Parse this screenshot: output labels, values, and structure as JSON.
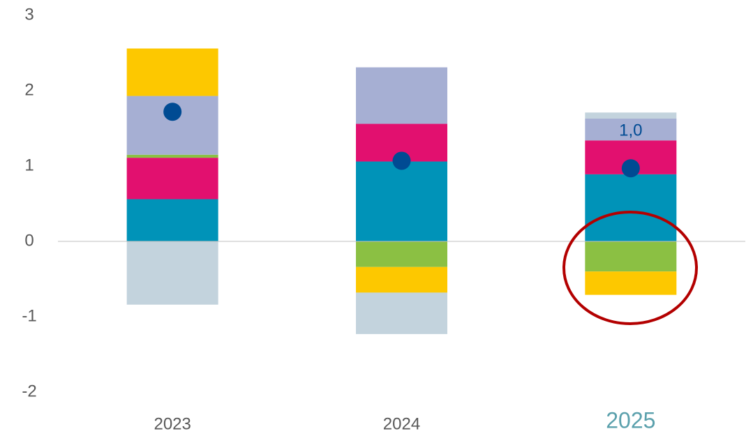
{
  "chart_data": {
    "type": "bar",
    "stacked": true,
    "categories": [
      "2023",
      "2024",
      "2025"
    ],
    "category_colors": [
      "#595959",
      "#595959",
      "#5aa0ac"
    ],
    "series": [
      {
        "color": "#0093b8",
        "values": [
          0.56,
          1.06,
          0.89
        ]
      },
      {
        "color": "#e2106f",
        "values": [
          0.55,
          0.5,
          0.45
        ]
      },
      {
        "color": "#8bc043",
        "values": [
          0.04,
          -0.34,
          -0.4
        ]
      },
      {
        "color": "#a6afd3",
        "values": [
          0.78,
          0.75,
          0.29
        ]
      },
      {
        "color": "#fdc800",
        "values": [
          0.63,
          -0.34,
          -0.31
        ]
      },
      {
        "color": "#c3d3dd",
        "values": [
          -0.84,
          -0.55,
          0.08
        ]
      }
    ],
    "dots": {
      "color": "#004b93",
      "values": [
        1.72,
        1.07,
        0.97
      ],
      "value_labels": [
        null,
        null,
        "1,0"
      ]
    },
    "ylim": [
      -2,
      3
    ],
    "yticks": [
      -2,
      -1,
      0,
      1,
      2,
      3
    ],
    "grid": false
  }
}
